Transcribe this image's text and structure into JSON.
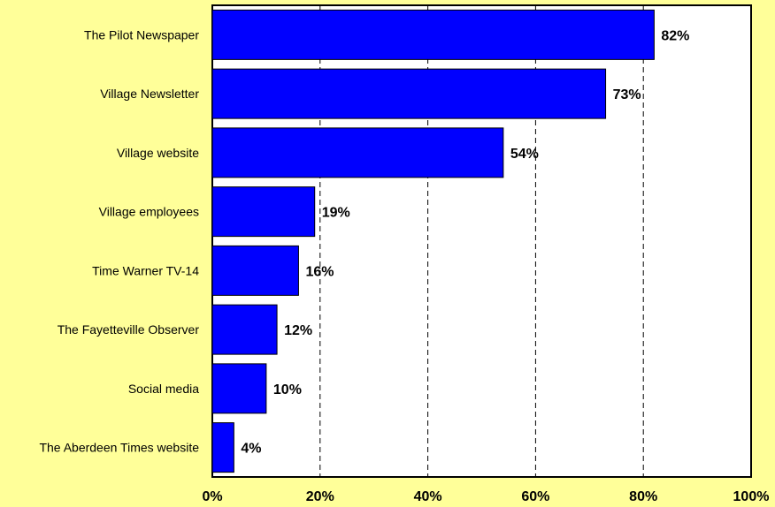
{
  "chart_data": {
    "type": "bar",
    "orientation": "horizontal",
    "categories": [
      "The Pilot Newspaper",
      "Village Newsletter",
      "Village website",
      "Village employees",
      "Time Warner TV-14",
      "The Fayetteville Observer",
      "Social media",
      "The Aberdeen Times website"
    ],
    "values": [
      82,
      73,
      54,
      19,
      16,
      12,
      10,
      4
    ],
    "data_labels": [
      "82%",
      "73%",
      "54%",
      "19%",
      "16%",
      "12%",
      "10%",
      "4%"
    ],
    "xlim": [
      0,
      100
    ],
    "x_ticks": [
      0,
      20,
      40,
      60,
      80,
      100
    ],
    "x_tick_labels": [
      "0%",
      "20%",
      "40%",
      "60%",
      "80%",
      "100%"
    ],
    "grid": "vertical-dashed",
    "legend": "none"
  },
  "colors": {
    "background": "#FFFF99",
    "plot_area": "#FFFFFF",
    "bar": "#0000FF",
    "bar_border": "#000000",
    "gridline": "#000000"
  }
}
